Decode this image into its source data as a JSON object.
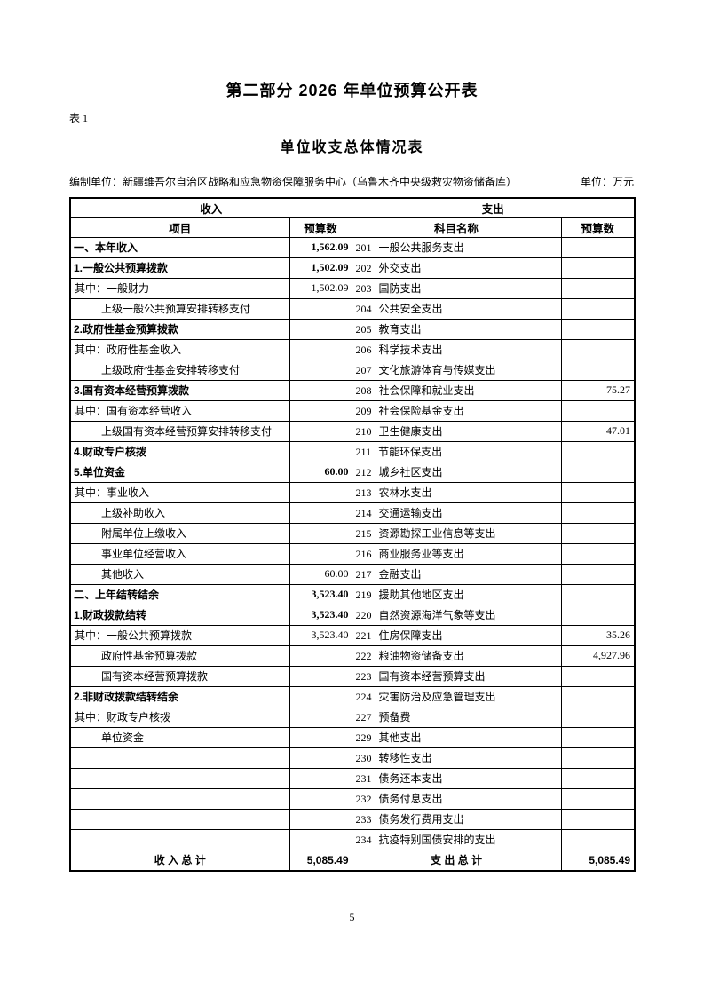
{
  "page": {
    "title": "第二部分 2026 年单位预算公开表",
    "table_label": "表 1",
    "subtitle": "单位收支总体情况表",
    "prepared_by_label": "编制单位：",
    "prepared_by": "新疆维吾尔自治区战略和应急物资保障服务中心（乌鲁木齐中央级救灾物资储备库）",
    "unit_label": "单位：万元",
    "page_number": "5"
  },
  "table": {
    "income_header": "收入",
    "expense_header": "支出",
    "columns": [
      "项目",
      "预算数",
      "科目名称",
      "预算数"
    ],
    "rows": [
      {
        "item": "一、本年收入",
        "istyle": "section",
        "amount": "1,562.09",
        "abold": true,
        "subject": "201 一般公共服务支出",
        "svalue": ""
      },
      {
        "item": "1.一般公共预算拨款",
        "istyle": "section",
        "amount": "1,502.09",
        "abold": true,
        "subject": "202 外交支出",
        "svalue": ""
      },
      {
        "item": "其中：一般财力",
        "istyle": "normal",
        "amount": "1,502.09",
        "abold": false,
        "subject": "203 国防支出",
        "svalue": ""
      },
      {
        "item": "上级一般公共预算安排转移支付",
        "istyle": "indent",
        "amount": "",
        "abold": false,
        "subject": "204 公共安全支出",
        "svalue": ""
      },
      {
        "item": "2.政府性基金预算拨款",
        "istyle": "section",
        "amount": "",
        "abold": false,
        "subject": "205 教育支出",
        "svalue": ""
      },
      {
        "item": "其中：政府性基金收入",
        "istyle": "normal",
        "amount": "",
        "abold": false,
        "subject": "206 科学技术支出",
        "svalue": ""
      },
      {
        "item": "上级政府性基金安排转移支付",
        "istyle": "indent",
        "amount": "",
        "abold": false,
        "subject": "207 文化旅游体育与传媒支出",
        "svalue": ""
      },
      {
        "item": "3.国有资本经营预算拨款",
        "istyle": "section",
        "amount": "",
        "abold": false,
        "subject": "208 社会保障和就业支出",
        "svalue": "75.27"
      },
      {
        "item": "其中：国有资本经营收入",
        "istyle": "normal",
        "amount": "",
        "abold": false,
        "subject": "209 社会保险基金支出",
        "svalue": ""
      },
      {
        "item": "上级国有资本经营预算安排转移支付",
        "istyle": "indent",
        "amount": "",
        "abold": false,
        "subject": "210 卫生健康支出",
        "svalue": "47.01"
      },
      {
        "item": "4.财政专户核拨",
        "istyle": "section",
        "amount": "",
        "abold": false,
        "subject": "211 节能环保支出",
        "svalue": ""
      },
      {
        "item": "5.单位资金",
        "istyle": "section",
        "amount": "60.00",
        "abold": true,
        "subject": "212 城乡社区支出",
        "svalue": ""
      },
      {
        "item": "其中：事业收入",
        "istyle": "normal",
        "amount": "",
        "abold": false,
        "subject": "213 农林水支出",
        "svalue": ""
      },
      {
        "item": "上级补助收入",
        "istyle": "indent",
        "amount": "",
        "abold": false,
        "subject": "214 交通运输支出",
        "svalue": ""
      },
      {
        "item": "附属单位上缴收入",
        "istyle": "indent",
        "amount": "",
        "abold": false,
        "subject": "215 资源勘探工业信息等支出",
        "svalue": ""
      },
      {
        "item": "事业单位经营收入",
        "istyle": "indent",
        "amount": "",
        "abold": false,
        "subject": "216 商业服务业等支出",
        "svalue": ""
      },
      {
        "item": "其他收入",
        "istyle": "indent",
        "amount": "60.00",
        "abold": false,
        "subject": "217 金融支出",
        "svalue": ""
      },
      {
        "item": "二、上年结转结余",
        "istyle": "section",
        "amount": "3,523.40",
        "abold": true,
        "subject": "219 援助其他地区支出",
        "svalue": ""
      },
      {
        "item": "1.财政拨款结转",
        "istyle": "section",
        "amount": "3,523.40",
        "abold": true,
        "subject": "220 自然资源海洋气象等支出",
        "svalue": ""
      },
      {
        "item": "其中：一般公共预算拨款",
        "istyle": "normal",
        "amount": "3,523.40",
        "abold": false,
        "subject": "221 住房保障支出",
        "svalue": "35.26"
      },
      {
        "item": "政府性基金预算拨款",
        "istyle": "indent",
        "amount": "",
        "abold": false,
        "subject": "222 粮油物资储备支出",
        "svalue": "4,927.96"
      },
      {
        "item": "国有资本经营预算拨款",
        "istyle": "indent",
        "amount": "",
        "abold": false,
        "subject": "223 国有资本经营预算支出",
        "svalue": ""
      },
      {
        "item": "2.非财政拨款结转结余",
        "istyle": "section",
        "amount": "",
        "abold": false,
        "subject": "224 灾害防治及应急管理支出",
        "svalue": ""
      },
      {
        "item": "其中：财政专户核拨",
        "istyle": "normal",
        "amount": "",
        "abold": false,
        "subject": "227 预备费",
        "svalue": ""
      },
      {
        "item": "单位资金",
        "istyle": "indent",
        "amount": "",
        "abold": false,
        "subject": "229 其他支出",
        "svalue": ""
      },
      {
        "item": "",
        "istyle": "normal",
        "amount": "",
        "abold": false,
        "subject": "230 转移性支出",
        "svalue": ""
      },
      {
        "item": "",
        "istyle": "normal",
        "amount": "",
        "abold": false,
        "subject": "231 债务还本支出",
        "svalue": ""
      },
      {
        "item": "",
        "istyle": "normal",
        "amount": "",
        "abold": false,
        "subject": "232 债务付息支出",
        "svalue": ""
      },
      {
        "item": "",
        "istyle": "normal",
        "amount": "",
        "abold": false,
        "subject": "233 债务发行费用支出",
        "svalue": ""
      },
      {
        "item": "",
        "istyle": "normal",
        "amount": "",
        "abold": false,
        "subject": "234 抗疫特别国债安排的支出",
        "svalue": ""
      }
    ],
    "total": {
      "income_label": "收 入 总 计",
      "income_value": "5,085.49",
      "expense_label": "支 出 总 计",
      "expense_value": "5,085.49"
    }
  }
}
